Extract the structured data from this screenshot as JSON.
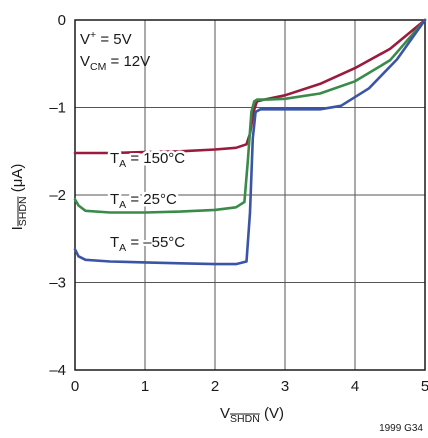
{
  "chart_data": {
    "type": "line",
    "xlabel": {
      "base": "V",
      "sub": "SHDN",
      "unit": "(V)"
    },
    "ylabel": {
      "base": "I",
      "sub": "SHDN",
      "unit": "(μA)"
    },
    "xlim": [
      0,
      5
    ],
    "ylim": [
      -4,
      0
    ],
    "x_ticks": [
      "0",
      "1",
      "2",
      "3",
      "4",
      "5"
    ],
    "y_ticks": [
      "0",
      "–1",
      "–2",
      "–3",
      "–4"
    ],
    "grid": true,
    "conditions": {
      "vplus": {
        "base": "V",
        "sup": "+",
        "rest": " = 5V"
      },
      "vcm": {
        "base": "V",
        "sub": "CM",
        "rest": " = 12V"
      }
    },
    "figure_code": "1999 G34",
    "series": [
      {
        "name": "T_A = 150°C",
        "label": {
          "base": "T",
          "sub": "A",
          "rest": " = 150°C"
        },
        "color": "#9b1b3e",
        "x": [
          0.0,
          0.5,
          1.0,
          1.5,
          2.0,
          2.3,
          2.45,
          2.5,
          2.55,
          2.6,
          2.7,
          3.0,
          3.5,
          4.0,
          4.5,
          5.0
        ],
        "y": [
          -1.52,
          -1.52,
          -1.51,
          -1.5,
          -1.48,
          -1.46,
          -1.42,
          -1.3,
          -1.05,
          -0.93,
          -0.91,
          -0.86,
          -0.73,
          -0.55,
          -0.33,
          0.0
        ]
      },
      {
        "name": "T_A = 25°C",
        "label": {
          "base": "T",
          "sub": "A",
          "rest": " = 25°C"
        },
        "color": "#3a8a4a",
        "x": [
          0.0,
          0.05,
          0.15,
          0.5,
          1.0,
          1.5,
          2.0,
          2.3,
          2.42,
          2.47,
          2.52,
          2.56,
          2.6,
          2.75,
          3.0,
          3.5,
          4.0,
          4.5,
          5.0
        ],
        "y": [
          -2.05,
          -2.12,
          -2.18,
          -2.2,
          -2.2,
          -2.19,
          -2.17,
          -2.14,
          -2.08,
          -1.6,
          -1.05,
          -0.93,
          -0.91,
          -0.91,
          -0.9,
          -0.84,
          -0.7,
          -0.46,
          0.0
        ]
      },
      {
        "name": "T_A = –55°C",
        "label": {
          "base": "T",
          "sub": "A",
          "rest": " = –55°C"
        },
        "color": "#3b55a6",
        "x": [
          0.0,
          0.05,
          0.15,
          0.5,
          1.0,
          1.5,
          2.0,
          2.3,
          2.45,
          2.5,
          2.54,
          2.58,
          2.65,
          2.8,
          3.0,
          3.5,
          3.8,
          4.2,
          4.6,
          5.0
        ],
        "y": [
          -2.62,
          -2.7,
          -2.74,
          -2.76,
          -2.77,
          -2.78,
          -2.79,
          -2.79,
          -2.76,
          -2.2,
          -1.35,
          -1.05,
          -1.02,
          -1.02,
          -1.02,
          -1.02,
          -0.98,
          -0.78,
          -0.45,
          0.0
        ]
      }
    ]
  }
}
